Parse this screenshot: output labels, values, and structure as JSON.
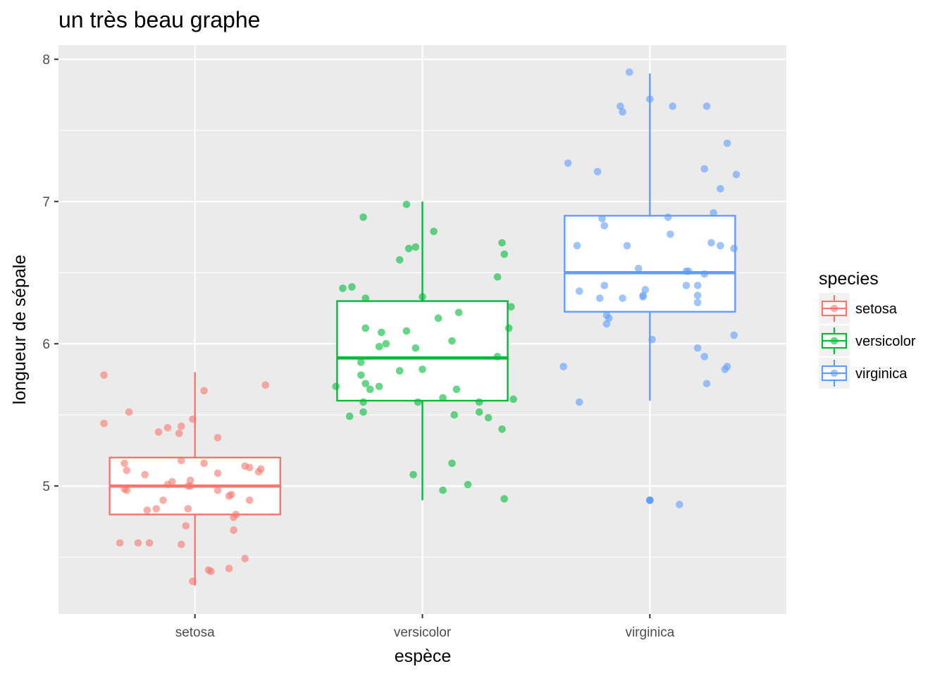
{
  "chart_data": {
    "type": "boxplot",
    "title": "un très beau graphe",
    "xlabel": "espèce",
    "ylabel": "longueur de sépale",
    "ylim": [
      4.1,
      8.1
    ],
    "y_ticks": [
      5,
      6,
      7,
      8
    ],
    "categories": [
      "setosa",
      "versicolor",
      "virginica"
    ],
    "legend": {
      "title": "species",
      "position": "right",
      "items": [
        "setosa",
        "versicolor",
        "virginica"
      ]
    },
    "series": [
      {
        "name": "setosa",
        "color": "#F8766D",
        "box": {
          "min": 4.3,
          "q1": 4.8,
          "median": 5.0,
          "q3": 5.2,
          "max": 5.8
        },
        "outliers": [],
        "points": [
          [
            -0.4,
            5.78
          ],
          [
            -0.29,
            5.52
          ],
          [
            -0.4,
            5.44
          ],
          [
            -0.12,
            5.41
          ],
          [
            -0.16,
            5.38
          ],
          [
            -0.06,
            5.42
          ],
          [
            -0.07,
            5.37
          ],
          [
            -0.01,
            5.47
          ],
          [
            0.1,
            5.34
          ],
          [
            0.04,
            5.67
          ],
          [
            0.31,
            5.71
          ],
          [
            -0.31,
            5.16
          ],
          [
            -0.3,
            5.11
          ],
          [
            -0.22,
            5.08
          ],
          [
            -0.06,
            5.18
          ],
          [
            0.04,
            5.16
          ],
          [
            0.1,
            5.09
          ],
          [
            0.22,
            5.14
          ],
          [
            0.24,
            5.13
          ],
          [
            0.28,
            5.1
          ],
          [
            0.29,
            5.12
          ],
          [
            -0.31,
            4.98
          ],
          [
            -0.3,
            4.97
          ],
          [
            -0.12,
            5.01
          ],
          [
            -0.1,
            5.03
          ],
          [
            -0.03,
            5.0
          ],
          [
            -0.02,
            5.0
          ],
          [
            -0.02,
            5.04
          ],
          [
            0.1,
            4.97
          ],
          [
            0.15,
            4.93
          ],
          [
            0.16,
            4.94
          ],
          [
            0.24,
            4.9
          ],
          [
            -0.14,
            4.9
          ],
          [
            -0.21,
            4.83
          ],
          [
            -0.17,
            4.84
          ],
          [
            -0.03,
            4.84
          ],
          [
            0.17,
            4.78
          ],
          [
            0.18,
            4.8
          ],
          [
            -0.04,
            4.72
          ],
          [
            0.17,
            4.69
          ],
          [
            -0.33,
            4.6
          ],
          [
            -0.25,
            4.6
          ],
          [
            -0.2,
            4.6
          ],
          [
            -0.06,
            4.59
          ],
          [
            0.22,
            4.49
          ],
          [
            0.06,
            4.41
          ],
          [
            0.07,
            4.4
          ],
          [
            0.15,
            4.42
          ],
          [
            -0.01,
            4.33
          ]
        ]
      },
      {
        "name": "versicolor",
        "color": "#00BA38",
        "box": {
          "min": 4.9,
          "q1": 5.6,
          "median": 5.9,
          "q3": 6.3,
          "max": 7.0
        },
        "outliers": [],
        "points": [
          [
            -0.07,
            6.98
          ],
          [
            -0.26,
            6.89
          ],
          [
            0.05,
            6.79
          ],
          [
            -0.06,
            6.67
          ],
          [
            -0.03,
            6.68
          ],
          [
            -0.1,
            6.59
          ],
          [
            0.35,
            6.71
          ],
          [
            0.36,
            6.63
          ],
          [
            0.33,
            6.47
          ],
          [
            -0.35,
            6.39
          ],
          [
            -0.31,
            6.4
          ],
          [
            -0.25,
            6.32
          ],
          [
            0.0,
            6.33
          ],
          [
            0.39,
            6.26
          ],
          [
            0.16,
            6.22
          ],
          [
            0.07,
            6.18
          ],
          [
            -0.25,
            6.11
          ],
          [
            -0.18,
            6.08
          ],
          [
            -0.07,
            6.09
          ],
          [
            0.38,
            6.11
          ],
          [
            0.13,
            6.02
          ],
          [
            -0.16,
            6.0
          ],
          [
            -0.19,
            5.98
          ],
          [
            -0.03,
            5.97
          ],
          [
            0.33,
            5.91
          ],
          [
            -0.27,
            5.87
          ],
          [
            -0.1,
            5.81
          ],
          [
            0.0,
            5.82
          ],
          [
            -0.27,
            5.78
          ],
          [
            -0.25,
            5.72
          ],
          [
            -0.23,
            5.68
          ],
          [
            -0.19,
            5.7
          ],
          [
            -0.38,
            5.7
          ],
          [
            0.15,
            5.68
          ],
          [
            -0.26,
            5.59
          ],
          [
            -0.02,
            5.59
          ],
          [
            0.09,
            5.62
          ],
          [
            0.25,
            5.59
          ],
          [
            0.4,
            5.61
          ],
          [
            -0.32,
            5.49
          ],
          [
            -0.26,
            5.52
          ],
          [
            0.14,
            5.5
          ],
          [
            0.25,
            5.52
          ],
          [
            0.29,
            5.48
          ],
          [
            0.35,
            5.4
          ],
          [
            0.13,
            5.16
          ],
          [
            -0.04,
            5.08
          ],
          [
            0.2,
            5.01
          ],
          [
            0.09,
            4.97
          ],
          [
            0.36,
            4.91
          ]
        ]
      },
      {
        "name": "virginica",
        "color": "#619CFF",
        "box": {
          "min": 5.6,
          "q1": 6.225,
          "median": 6.5,
          "q3": 6.9,
          "max": 7.9
        },
        "outliers": [
          4.9
        ],
        "points": [
          [
            -0.09,
            7.91
          ],
          [
            -0.13,
            7.67
          ],
          [
            -0.12,
            7.63
          ],
          [
            0.0,
            7.72
          ],
          [
            0.1,
            7.67
          ],
          [
            0.25,
            7.67
          ],
          [
            -0.36,
            7.27
          ],
          [
            -0.23,
            7.21
          ],
          [
            0.24,
            7.23
          ],
          [
            0.34,
            7.41
          ],
          [
            0.38,
            7.19
          ],
          [
            0.31,
            7.09
          ],
          [
            -0.21,
            6.88
          ],
          [
            -0.2,
            6.83
          ],
          [
            -0.32,
            6.69
          ],
          [
            -0.1,
            6.69
          ],
          [
            0.08,
            6.89
          ],
          [
            0.09,
            6.77
          ],
          [
            0.28,
            6.92
          ],
          [
            0.27,
            6.71
          ],
          [
            0.31,
            6.69
          ],
          [
            0.37,
            6.67
          ],
          [
            -0.05,
            6.53
          ],
          [
            0.16,
            6.51
          ],
          [
            0.17,
            6.51
          ],
          [
            0.24,
            6.49
          ],
          [
            -0.31,
            6.37
          ],
          [
            -0.2,
            6.41
          ],
          [
            -0.22,
            6.32
          ],
          [
            -0.12,
            6.32
          ],
          [
            -0.03,
            6.33
          ],
          [
            -0.02,
            6.38
          ],
          [
            -0.03,
            6.34
          ],
          [
            0.16,
            6.41
          ],
          [
            0.21,
            6.41
          ],
          [
            0.21,
            6.34
          ],
          [
            0.21,
            6.29
          ],
          [
            -0.19,
            6.2
          ],
          [
            -0.18,
            6.18
          ],
          [
            -0.19,
            6.14
          ],
          [
            0.01,
            6.03
          ],
          [
            0.37,
            6.06
          ],
          [
            0.21,
            5.97
          ],
          [
            0.24,
            5.91
          ],
          [
            0.34,
            5.84
          ],
          [
            0.33,
            5.82
          ],
          [
            0.25,
            5.72
          ],
          [
            -0.38,
            5.84
          ],
          [
            -0.31,
            5.59
          ],
          [
            0.0,
            4.9
          ],
          [
            0.13,
            4.87
          ]
        ]
      }
    ]
  }
}
